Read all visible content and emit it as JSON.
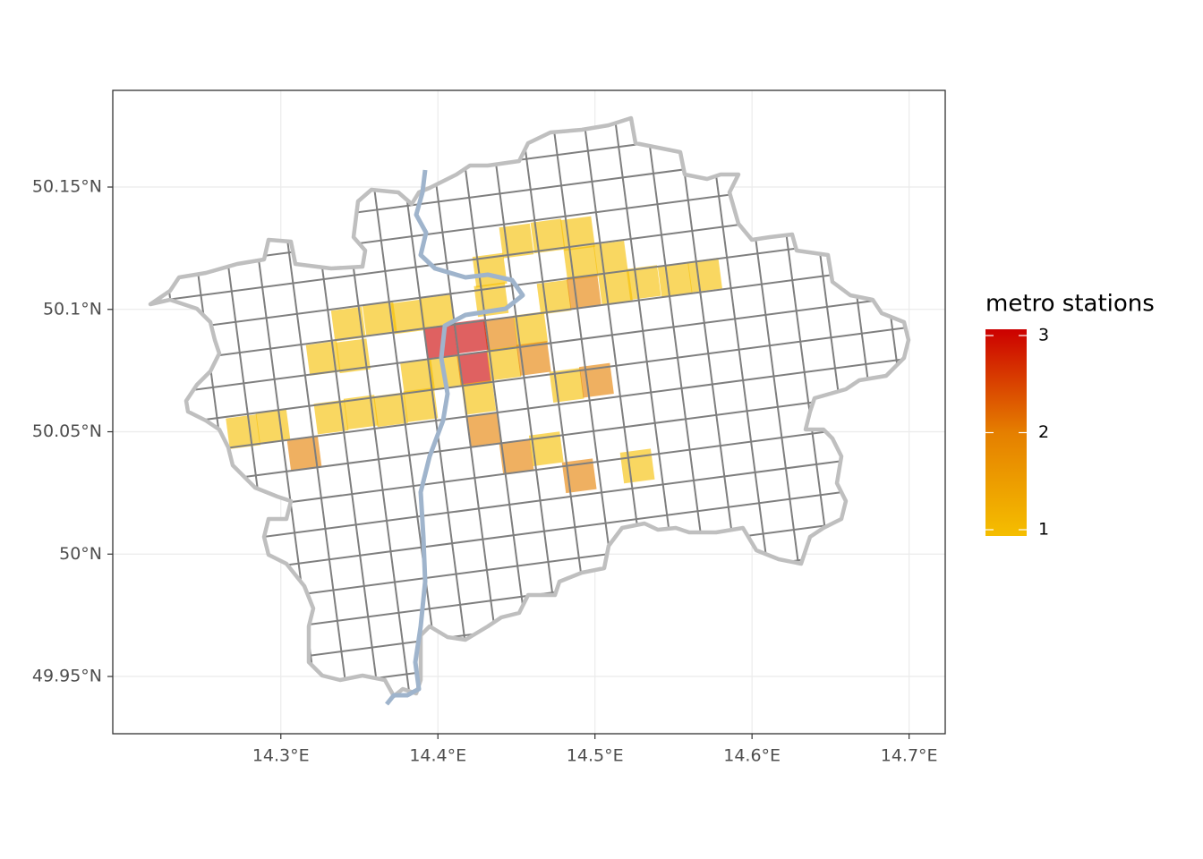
{
  "chart_data": {
    "type": "map",
    "xlim": [
      14.193,
      14.723
    ],
    "ylim": [
      49.9266,
      50.1895
    ],
    "xticks": [
      {
        "value": 14.3,
        "label": "14.3°E"
      },
      {
        "value": 14.4,
        "label": "14.4°E"
      },
      {
        "value": 14.5,
        "label": "14.5°E"
      },
      {
        "value": 14.6,
        "label": "14.6°E"
      },
      {
        "value": 14.7,
        "label": "14.7°E"
      }
    ],
    "yticks": [
      {
        "value": 49.95,
        "label": "49.95°N"
      },
      {
        "value": 50.0,
        "label": "50°N"
      },
      {
        "value": 50.05,
        "label": "50.05°N"
      },
      {
        "value": 50.1,
        "label": "50.1°N"
      },
      {
        "value": 50.15,
        "label": "50.15°N"
      }
    ],
    "grid": true,
    "legend": {
      "title": "metro stations",
      "ticks": [
        1,
        2,
        3
      ],
      "colors": [
        "#f5be00",
        "#e57f00",
        "#cc0000"
      ]
    },
    "cells": [
      {
        "lon": 14.45,
        "lat": 50.128,
        "value": 1
      },
      {
        "lon": 14.47,
        "lat": 50.13,
        "value": 1
      },
      {
        "lon": 14.489,
        "lat": 50.131,
        "value": 1
      },
      {
        "lon": 14.491,
        "lat": 50.119,
        "value": 1
      },
      {
        "lon": 14.51,
        "lat": 50.121,
        "value": 1
      },
      {
        "lon": 14.433,
        "lat": 50.116,
        "value": 1
      },
      {
        "lon": 14.434,
        "lat": 50.104,
        "value": 1
      },
      {
        "lon": 14.474,
        "lat": 50.105,
        "value": 1
      },
      {
        "lon": 14.493,
        "lat": 50.107,
        "value": 2
      },
      {
        "lon": 14.513,
        "lat": 50.109,
        "value": 1
      },
      {
        "lon": 14.531,
        "lat": 50.111,
        "value": 1
      },
      {
        "lon": 14.551,
        "lat": 50.112,
        "value": 1
      },
      {
        "lon": 14.57,
        "lat": 50.114,
        "value": 1
      },
      {
        "lon": 14.343,
        "lat": 50.094,
        "value": 1
      },
      {
        "lon": 14.363,
        "lat": 50.096,
        "value": 1
      },
      {
        "lon": 14.381,
        "lat": 50.097,
        "value": 1
      },
      {
        "lon": 14.4,
        "lat": 50.099,
        "value": 1
      },
      {
        "lon": 14.44,
        "lat": 50.09,
        "value": 2
      },
      {
        "lon": 14.459,
        "lat": 50.092,
        "value": 1
      },
      {
        "lon": 14.402,
        "lat": 50.087,
        "value": 3
      },
      {
        "lon": 14.421,
        "lat": 50.089,
        "value": 3
      },
      {
        "lon": 14.327,
        "lat": 50.08,
        "value": 1
      },
      {
        "lon": 14.346,
        "lat": 50.081,
        "value": 1
      },
      {
        "lon": 14.423,
        "lat": 50.076,
        "value": 3
      },
      {
        "lon": 14.442,
        "lat": 50.078,
        "value": 1
      },
      {
        "lon": 14.461,
        "lat": 50.08,
        "value": 2
      },
      {
        "lon": 14.387,
        "lat": 50.073,
        "value": 1
      },
      {
        "lon": 14.405,
        "lat": 50.074,
        "value": 1
      },
      {
        "lon": 14.426,
        "lat": 50.064,
        "value": 1
      },
      {
        "lon": 14.482,
        "lat": 50.069,
        "value": 1
      },
      {
        "lon": 14.501,
        "lat": 50.071,
        "value": 2
      },
      {
        "lon": 14.276,
        "lat": 50.05,
        "value": 1
      },
      {
        "lon": 14.295,
        "lat": 50.052,
        "value": 1
      },
      {
        "lon": 14.332,
        "lat": 50.056,
        "value": 1
      },
      {
        "lon": 14.351,
        "lat": 50.058,
        "value": 1
      },
      {
        "lon": 14.37,
        "lat": 50.059,
        "value": 1
      },
      {
        "lon": 14.389,
        "lat": 50.061,
        "value": 1
      },
      {
        "lon": 14.429,
        "lat": 50.051,
        "value": 2
      },
      {
        "lon": 14.315,
        "lat": 50.041,
        "value": 2
      },
      {
        "lon": 14.45,
        "lat": 50.04,
        "value": 2
      },
      {
        "lon": 14.469,
        "lat": 50.043,
        "value": 1
      },
      {
        "lon": 14.49,
        "lat": 50.032,
        "value": 2
      },
      {
        "lon": 14.527,
        "lat": 50.036,
        "value": 1
      }
    ]
  }
}
